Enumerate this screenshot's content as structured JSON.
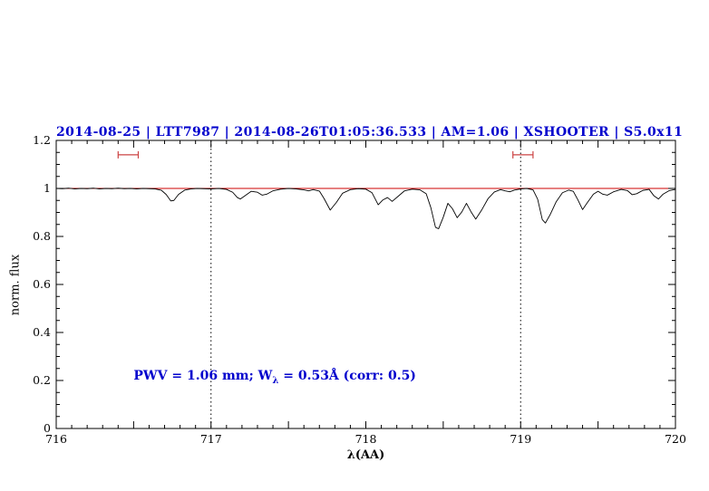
{
  "chart_data": {
    "type": "line",
    "title": "2014-08-25 | LTT7987 | 2014-08-26T01:05:36.533 | AM=1.06 | XSHOOTER | S5.0x11",
    "title_color": "#0000cd",
    "xlabel": "λ(AA)",
    "ylabel": "norm. flux",
    "xlim": [
      716,
      720
    ],
    "ylim": [
      0,
      1.2
    ],
    "xticks": [
      716,
      717,
      718,
      719,
      720
    ],
    "xtick_labels": [
      "716",
      "717",
      "718",
      "719",
      "720"
    ],
    "yticks": [
      0,
      0.2,
      0.4,
      0.6,
      0.8,
      1,
      1.2
    ],
    "ytick_labels": [
      "0",
      "0.2",
      "0.4",
      "0.6",
      "0.8",
      "1",
      "1.2"
    ],
    "x_minor_step": 0.1,
    "x_major_step": 0.5,
    "y_minor_step": 0.05,
    "y_major_step": 0.2,
    "grid": false,
    "legend": "none",
    "frame_color": "#000000",
    "continuum_line": {
      "y": 1.0,
      "color": "#cc0000"
    },
    "vertical_dotted_lines": [
      717,
      719
    ],
    "range_markers": [
      {
        "x_start": 716.4,
        "x_end": 716.53,
        "y": 1.14,
        "color": "#cc4444"
      },
      {
        "x_start": 718.95,
        "x_end": 719.08,
        "y": 1.14,
        "color": "#cc4444"
      }
    ],
    "annotation": {
      "text_before_sub": "PWV = 1.06 mm; W",
      "sub": "λ",
      "text_after_sub": " = 0.53Å (corr: 0.5)",
      "x": 716.5,
      "y": 0.21,
      "color": "#0000cd"
    },
    "series": [
      {
        "name": "spectrum",
        "color": "#000000",
        "points": [
          [
            716.0,
            1.0
          ],
          [
            716.04,
            0.999
          ],
          [
            716.08,
            1.001
          ],
          [
            716.12,
            0.998
          ],
          [
            716.16,
            1.0
          ],
          [
            716.2,
            0.999
          ],
          [
            716.24,
            1.001
          ],
          [
            716.28,
            0.998
          ],
          [
            716.32,
            1.0
          ],
          [
            716.36,
            0.999
          ],
          [
            716.4,
            1.001
          ],
          [
            716.44,
            0.999
          ],
          [
            716.48,
            1.0
          ],
          [
            716.52,
            0.998
          ],
          [
            716.56,
            1.0
          ],
          [
            716.6,
            0.999
          ],
          [
            716.64,
            0.998
          ],
          [
            716.68,
            0.992
          ],
          [
            716.71,
            0.975
          ],
          [
            716.74,
            0.948
          ],
          [
            716.76,
            0.95
          ],
          [
            716.79,
            0.975
          ],
          [
            716.83,
            0.993
          ],
          [
            716.87,
            0.998
          ],
          [
            716.91,
            1.0
          ],
          [
            716.95,
            0.999
          ],
          [
            717.0,
            0.998
          ],
          [
            717.05,
            1.0
          ],
          [
            717.1,
            0.996
          ],
          [
            717.14,
            0.984
          ],
          [
            717.17,
            0.962
          ],
          [
            717.19,
            0.956
          ],
          [
            717.22,
            0.97
          ],
          [
            717.26,
            0.988
          ],
          [
            717.3,
            0.984
          ],
          [
            717.33,
            0.972
          ],
          [
            717.36,
            0.976
          ],
          [
            717.4,
            0.99
          ],
          [
            717.45,
            0.997
          ],
          [
            717.5,
            1.0
          ],
          [
            717.55,
            0.998
          ],
          [
            717.6,
            0.994
          ],
          [
            717.63,
            0.99
          ],
          [
            717.66,
            0.995
          ],
          [
            717.7,
            0.989
          ],
          [
            717.73,
            0.958
          ],
          [
            717.77,
            0.91
          ],
          [
            717.81,
            0.942
          ],
          [
            717.85,
            0.98
          ],
          [
            717.9,
            0.995
          ],
          [
            717.95,
            0.999
          ],
          [
            718.0,
            0.997
          ],
          [
            718.04,
            0.982
          ],
          [
            718.08,
            0.932
          ],
          [
            718.11,
            0.952
          ],
          [
            718.14,
            0.962
          ],
          [
            718.17,
            0.946
          ],
          [
            718.21,
            0.968
          ],
          [
            718.25,
            0.99
          ],
          [
            718.3,
            0.997
          ],
          [
            718.35,
            0.994
          ],
          [
            718.39,
            0.978
          ],
          [
            718.42,
            0.92
          ],
          [
            718.45,
            0.838
          ],
          [
            718.47,
            0.832
          ],
          [
            718.5,
            0.88
          ],
          [
            718.53,
            0.938
          ],
          [
            718.56,
            0.915
          ],
          [
            718.59,
            0.878
          ],
          [
            718.62,
            0.902
          ],
          [
            718.65,
            0.938
          ],
          [
            718.68,
            0.902
          ],
          [
            718.71,
            0.872
          ],
          [
            718.75,
            0.912
          ],
          [
            718.79,
            0.958
          ],
          [
            718.83,
            0.985
          ],
          [
            718.87,
            0.995
          ],
          [
            718.9,
            0.99
          ],
          [
            718.93,
            0.986
          ],
          [
            718.96,
            0.993
          ],
          [
            719.0,
            0.998
          ],
          [
            719.04,
            1.0
          ],
          [
            719.08,
            0.994
          ],
          [
            719.11,
            0.955
          ],
          [
            719.14,
            0.87
          ],
          [
            719.16,
            0.856
          ],
          [
            719.19,
            0.89
          ],
          [
            719.23,
            0.945
          ],
          [
            719.27,
            0.982
          ],
          [
            719.31,
            0.993
          ],
          [
            719.34,
            0.988
          ],
          [
            719.37,
            0.952
          ],
          [
            719.4,
            0.912
          ],
          [
            719.43,
            0.94
          ],
          [
            719.47,
            0.976
          ],
          [
            719.5,
            0.988
          ],
          [
            719.53,
            0.976
          ],
          [
            719.56,
            0.972
          ],
          [
            719.6,
            0.986
          ],
          [
            719.65,
            0.996
          ],
          [
            719.69,
            0.991
          ],
          [
            719.72,
            0.974
          ],
          [
            719.75,
            0.978
          ],
          [
            719.79,
            0.992
          ],
          [
            719.83,
            0.996
          ],
          [
            719.86,
            0.97
          ],
          [
            719.89,
            0.956
          ],
          [
            719.92,
            0.976
          ],
          [
            719.96,
            0.991
          ],
          [
            720.0,
            0.996
          ]
        ]
      }
    ]
  }
}
